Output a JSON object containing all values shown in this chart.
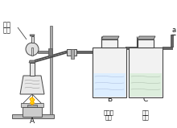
{
  "background": "#ffffff",
  "line_color": "#444444",
  "text_color": "#111111",
  "labels": {
    "top_left_1": "碳酸",
    "top_left_2": "氢钙",
    "A": "A",
    "B": "B",
    "C": "C",
    "B_sub1": "澄清石",
    "B_sub2": "灰水",
    "C_sub1": "氢氧",
    "C_sub2": "化钠",
    "a": "a"
  }
}
